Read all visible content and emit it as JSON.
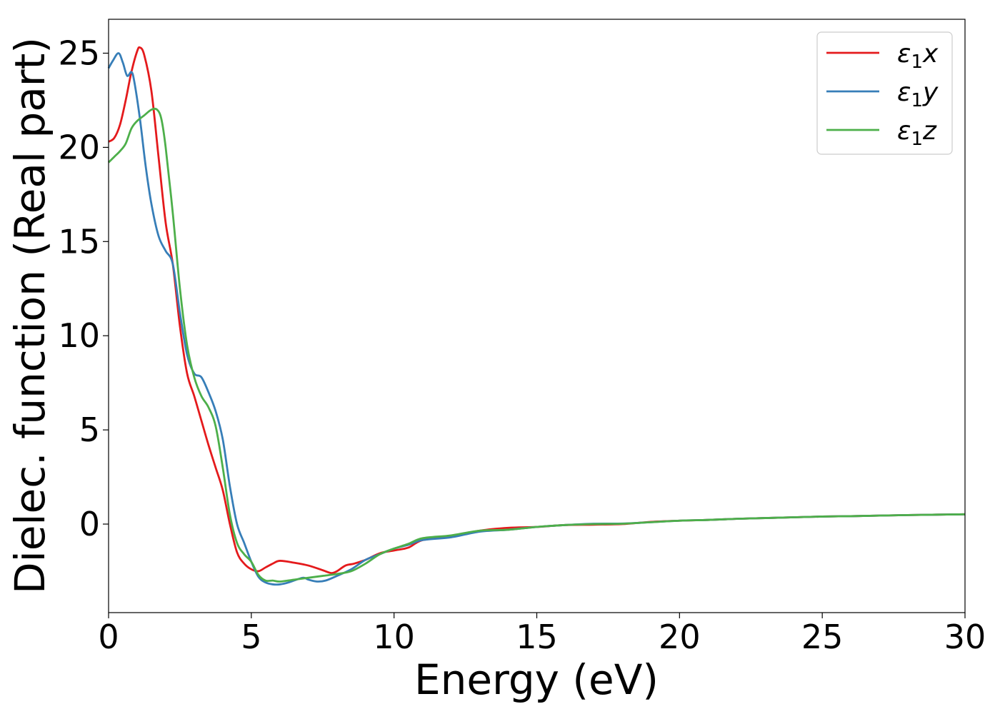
{
  "chart_data": {
    "type": "line",
    "title": "",
    "xlabel": "Energy (eV)",
    "ylabel": "Dielec. function (Real part)",
    "xlim": [
      0,
      30
    ],
    "ylim": [
      -4.7,
      26.8
    ],
    "xticks": [
      0,
      5,
      10,
      15,
      20,
      25,
      30
    ],
    "yticks": [
      0,
      5,
      10,
      15,
      20,
      25
    ],
    "grid": false,
    "legend_position": "top-right",
    "series": [
      {
        "name": "ε1x",
        "name_parts": {
          "main": "ε",
          "sub": "1",
          "tail": "x"
        },
        "color": "#e41a1c",
        "points": [
          [
            0,
            20.3
          ],
          [
            0.2,
            20.5
          ],
          [
            0.4,
            21.2
          ],
          [
            0.6,
            22.5
          ],
          [
            0.8,
            24.0
          ],
          [
            1.0,
            25.1
          ],
          [
            1.1,
            25.3
          ],
          [
            1.25,
            24.9
          ],
          [
            1.5,
            23.0
          ],
          [
            1.75,
            19.5
          ],
          [
            2.0,
            16.0
          ],
          [
            2.25,
            13.8
          ],
          [
            2.5,
            10.5
          ],
          [
            2.75,
            8.0
          ],
          [
            3.0,
            6.8
          ],
          [
            3.25,
            5.5
          ],
          [
            3.5,
            4.2
          ],
          [
            3.75,
            3.0
          ],
          [
            4.0,
            1.8
          ],
          [
            4.25,
            0.0
          ],
          [
            4.5,
            -1.5
          ],
          [
            4.75,
            -2.1
          ],
          [
            5.0,
            -2.4
          ],
          [
            5.25,
            -2.5
          ],
          [
            5.5,
            -2.3
          ],
          [
            5.75,
            -2.1
          ],
          [
            6.0,
            -1.95
          ],
          [
            6.5,
            -2.05
          ],
          [
            7.0,
            -2.2
          ],
          [
            7.5,
            -2.45
          ],
          [
            7.8,
            -2.6
          ],
          [
            8.0,
            -2.5
          ],
          [
            8.3,
            -2.2
          ],
          [
            8.6,
            -2.1
          ],
          [
            9.0,
            -1.9
          ],
          [
            9.5,
            -1.55
          ],
          [
            10.0,
            -1.4
          ],
          [
            10.5,
            -1.25
          ],
          [
            11.0,
            -0.85
          ],
          [
            12.0,
            -0.65
          ],
          [
            13.0,
            -0.35
          ],
          [
            14.0,
            -0.2
          ],
          [
            15.0,
            -0.15
          ],
          [
            16.0,
            -0.05
          ],
          [
            17.0,
            -0.03
          ],
          [
            18.0,
            0.0
          ],
          [
            19.0,
            0.12
          ],
          [
            20.0,
            0.18
          ],
          [
            21.0,
            0.22
          ],
          [
            22.0,
            0.28
          ],
          [
            23.0,
            0.32
          ],
          [
            24.0,
            0.36
          ],
          [
            25.0,
            0.4
          ],
          [
            26.0,
            0.42
          ],
          [
            27.0,
            0.45
          ],
          [
            28.0,
            0.48
          ],
          [
            29.0,
            0.5
          ],
          [
            30.0,
            0.52
          ]
        ]
      },
      {
        "name": "ε1y",
        "name_parts": {
          "main": "ε",
          "sub": "1",
          "tail": "y"
        },
        "color": "#377eb8",
        "points": [
          [
            0,
            24.2
          ],
          [
            0.15,
            24.6
          ],
          [
            0.35,
            25.0
          ],
          [
            0.5,
            24.5
          ],
          [
            0.65,
            23.8
          ],
          [
            0.8,
            24.0
          ],
          [
            0.9,
            23.5
          ],
          [
            1.1,
            21.5
          ],
          [
            1.3,
            19.0
          ],
          [
            1.5,
            17.0
          ],
          [
            1.75,
            15.3
          ],
          [
            2.0,
            14.5
          ],
          [
            2.25,
            13.8
          ],
          [
            2.5,
            11.2
          ],
          [
            2.75,
            9.0
          ],
          [
            3.0,
            8.0
          ],
          [
            3.25,
            7.8
          ],
          [
            3.5,
            7.0
          ],
          [
            3.75,
            6.0
          ],
          [
            4.0,
            4.5
          ],
          [
            4.25,
            2.0
          ],
          [
            4.5,
            0.0
          ],
          [
            4.75,
            -1.0
          ],
          [
            5.0,
            -2.0
          ],
          [
            5.25,
            -2.8
          ],
          [
            5.5,
            -3.1
          ],
          [
            5.75,
            -3.2
          ],
          [
            6.0,
            -3.2
          ],
          [
            6.3,
            -3.1
          ],
          [
            6.8,
            -2.85
          ],
          [
            7.0,
            -2.95
          ],
          [
            7.3,
            -3.05
          ],
          [
            7.6,
            -3.0
          ],
          [
            8.0,
            -2.75
          ],
          [
            8.5,
            -2.4
          ],
          [
            9.0,
            -1.9
          ],
          [
            9.5,
            -1.6
          ],
          [
            10.0,
            -1.3
          ],
          [
            10.5,
            -1.1
          ],
          [
            11.0,
            -0.85
          ],
          [
            12.0,
            -0.7
          ],
          [
            13.0,
            -0.4
          ],
          [
            14.0,
            -0.3
          ],
          [
            15.0,
            -0.15
          ],
          [
            16.0,
            -0.05
          ],
          [
            17.0,
            0.02
          ],
          [
            18.0,
            0.03
          ],
          [
            19.0,
            0.1
          ],
          [
            20.0,
            0.18
          ],
          [
            21.0,
            0.22
          ],
          [
            22.0,
            0.28
          ],
          [
            23.0,
            0.32
          ],
          [
            24.0,
            0.36
          ],
          [
            25.0,
            0.4
          ],
          [
            26.0,
            0.42
          ],
          [
            27.0,
            0.45
          ],
          [
            28.0,
            0.48
          ],
          [
            29.0,
            0.5
          ],
          [
            30.0,
            0.52
          ]
        ]
      },
      {
        "name": "ε1z",
        "name_parts": {
          "main": "ε",
          "sub": "1",
          "tail": "z"
        },
        "color": "#4daf4a",
        "points": [
          [
            0,
            19.2
          ],
          [
            0.2,
            19.5
          ],
          [
            0.4,
            19.8
          ],
          [
            0.6,
            20.2
          ],
          [
            0.8,
            21.0
          ],
          [
            1.0,
            21.4
          ],
          [
            1.25,
            21.7
          ],
          [
            1.5,
            22.0
          ],
          [
            1.7,
            22.0
          ],
          [
            1.85,
            21.5
          ],
          [
            2.0,
            20.0
          ],
          [
            2.25,
            16.5
          ],
          [
            2.5,
            12.5
          ],
          [
            2.75,
            9.5
          ],
          [
            3.0,
            7.8
          ],
          [
            3.25,
            6.8
          ],
          [
            3.5,
            6.2
          ],
          [
            3.75,
            5.2
          ],
          [
            4.0,
            3.0
          ],
          [
            4.25,
            0.5
          ],
          [
            4.5,
            -1.0
          ],
          [
            4.75,
            -1.6
          ],
          [
            5.0,
            -2.0
          ],
          [
            5.25,
            -2.7
          ],
          [
            5.5,
            -3.0
          ],
          [
            5.75,
            -3.0
          ],
          [
            6.0,
            -3.05
          ],
          [
            6.5,
            -2.95
          ],
          [
            7.0,
            -2.85
          ],
          [
            7.5,
            -2.75
          ],
          [
            8.0,
            -2.65
          ],
          [
            8.5,
            -2.5
          ],
          [
            9.0,
            -2.1
          ],
          [
            9.5,
            -1.6
          ],
          [
            10.0,
            -1.3
          ],
          [
            10.5,
            -1.05
          ],
          [
            11.0,
            -0.75
          ],
          [
            12.0,
            -0.6
          ],
          [
            13.0,
            -0.35
          ],
          [
            14.0,
            -0.3
          ],
          [
            15.0,
            -0.15
          ],
          [
            16.0,
            -0.05
          ],
          [
            17.0,
            0.0
          ],
          [
            18.0,
            0.02
          ],
          [
            19.0,
            0.1
          ],
          [
            20.0,
            0.18
          ],
          [
            21.0,
            0.22
          ],
          [
            22.0,
            0.28
          ],
          [
            23.0,
            0.32
          ],
          [
            24.0,
            0.36
          ],
          [
            25.0,
            0.4
          ],
          [
            26.0,
            0.42
          ],
          [
            27.0,
            0.45
          ],
          [
            28.0,
            0.48
          ],
          [
            29.0,
            0.5
          ],
          [
            30.0,
            0.52
          ]
        ]
      }
    ]
  }
}
